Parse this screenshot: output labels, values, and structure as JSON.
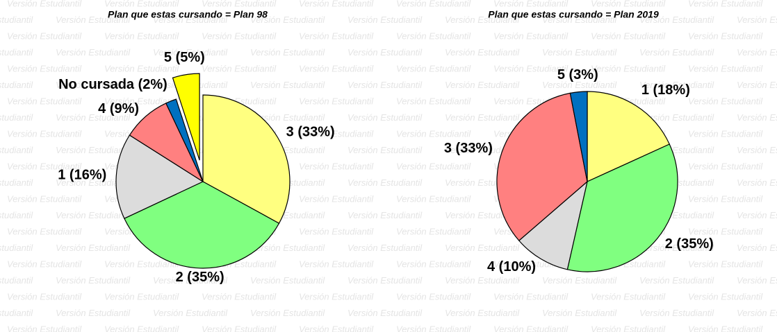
{
  "watermark": "Versión Estudiantil",
  "chart_data": [
    {
      "type": "pie",
      "title": "Plan que estas cursando = Plan 98",
      "values": [
        33,
        35,
        16,
        9,
        2,
        5
      ],
      "value_labels": [
        "3 (33%)",
        "2 (35%)",
        "1 (16%)",
        "4 (9%)",
        "No cursada (2%)",
        "5 (5%)"
      ],
      "colors": [
        "#ffff80",
        "#80ff80",
        "#dcdcdc",
        "#ff8080",
        "#0070c0",
        "#ffff00"
      ],
      "explode": [
        0,
        0,
        0,
        0,
        0,
        0.25
      ]
    },
    {
      "type": "pie",
      "title": "Plan que estas cursando = Plan 2019",
      "values": [
        18,
        35,
        10,
        33,
        3
      ],
      "value_labels": [
        "1 (18%)",
        "2 (35%)",
        "4 (10%)",
        "3 (33%)",
        "5 (3%)"
      ],
      "colors": [
        "#ffff80",
        "#80ff80",
        "#dcdcdc",
        "#ff8080",
        "#0070c0"
      ],
      "explode": [
        0,
        0,
        0,
        0,
        0
      ]
    }
  ]
}
